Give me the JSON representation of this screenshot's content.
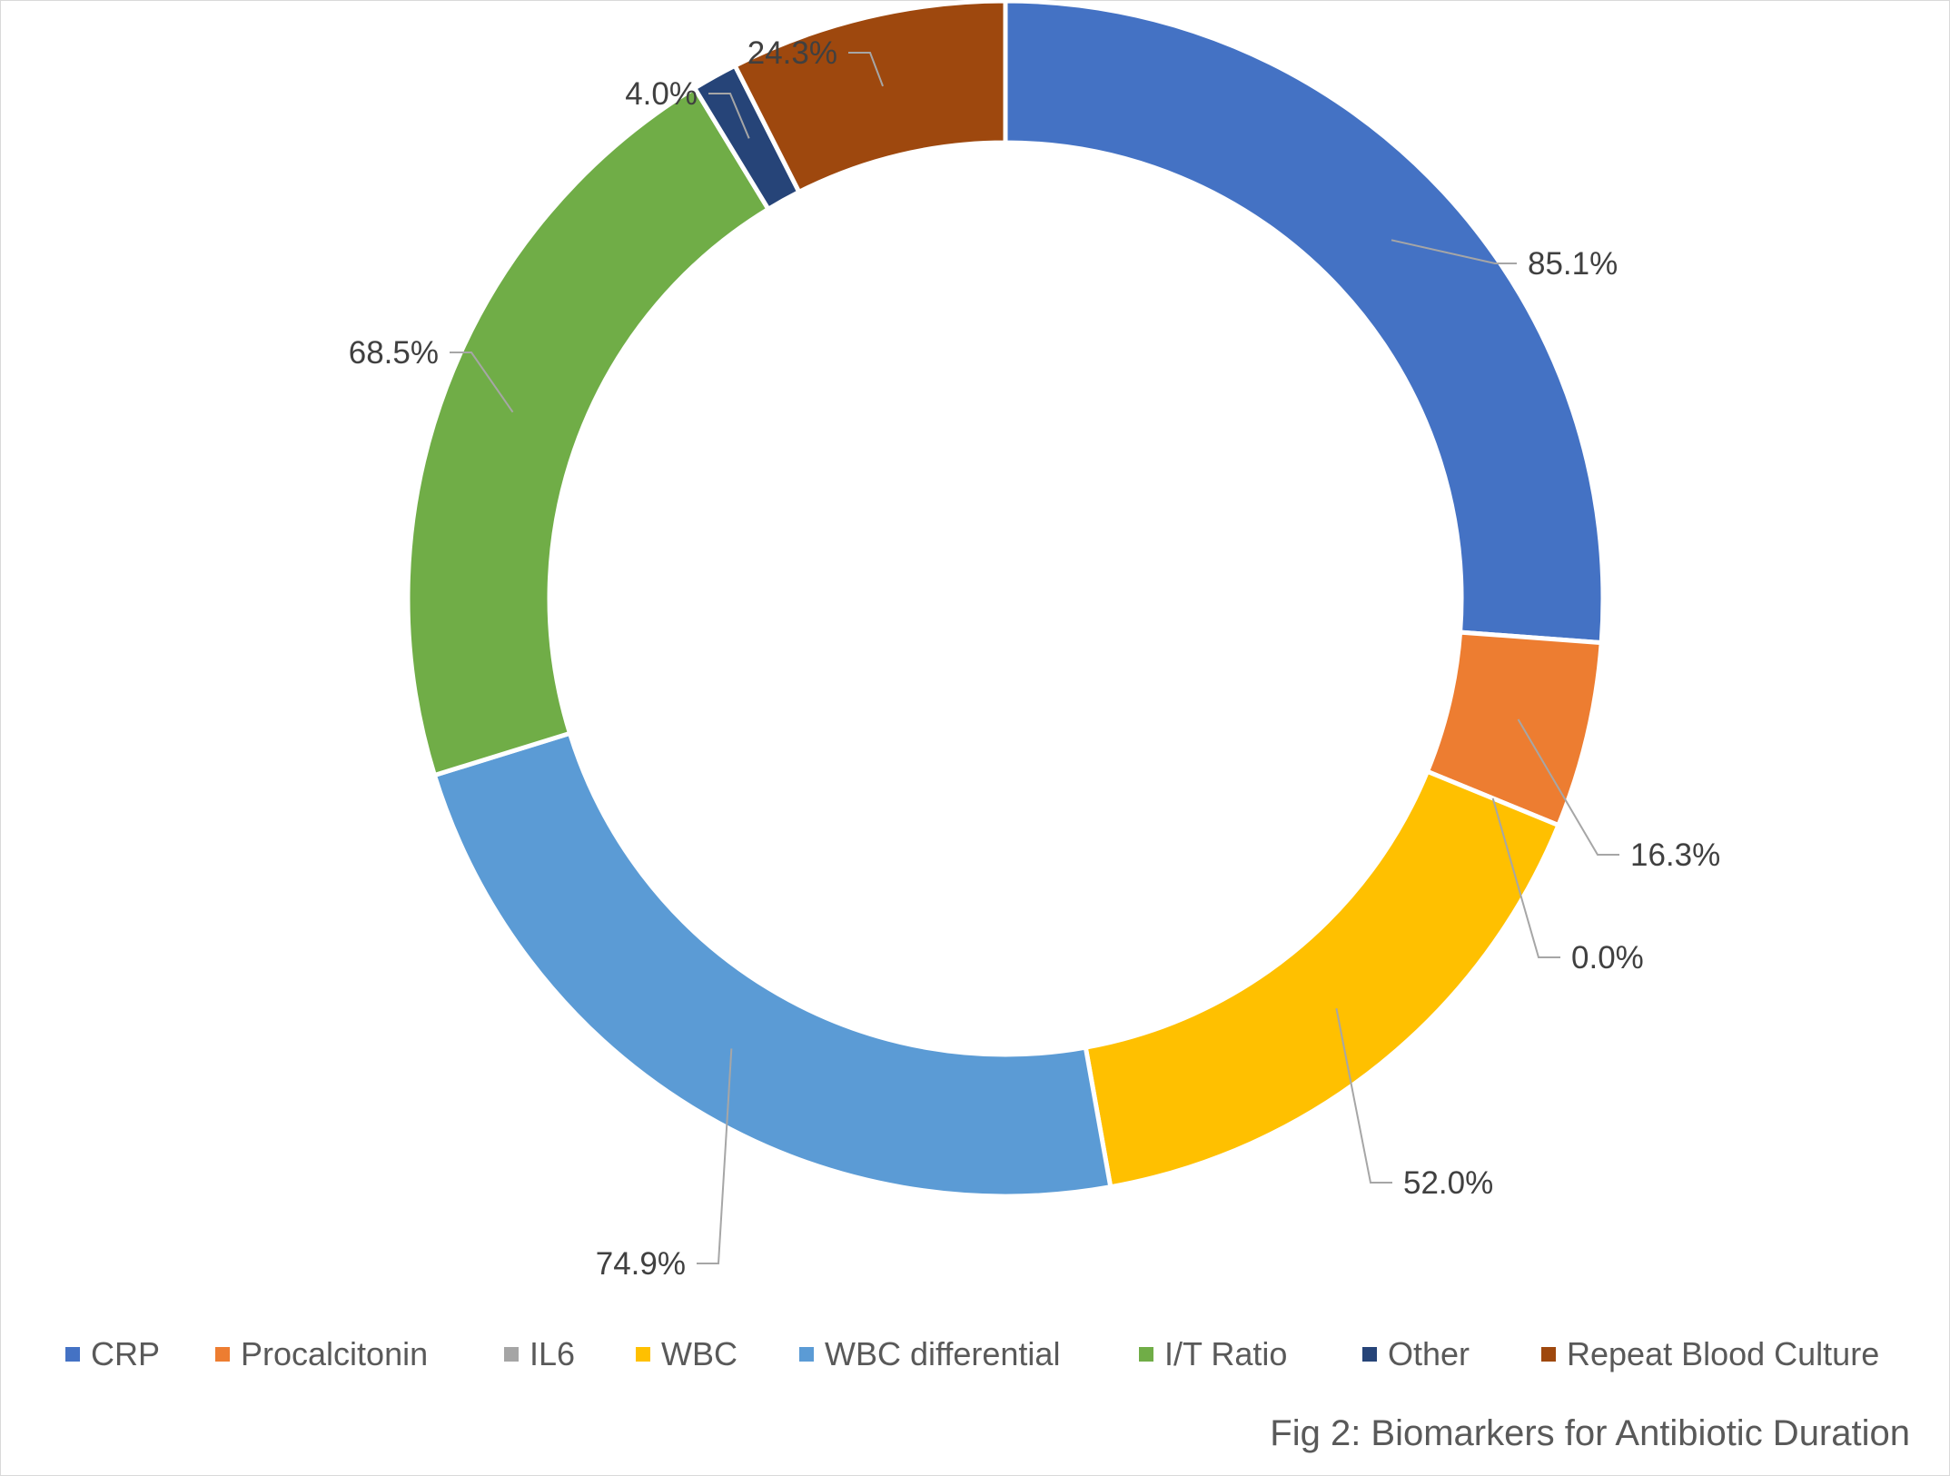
{
  "chart_data": {
    "type": "pie",
    "variant": "doughnut",
    "title": "",
    "caption": "Fig 2: Biomarkers for Antibiotic Duration",
    "legend_position": "bottom",
    "categories": [
      "CRP",
      "Procalcitonin",
      "IL6",
      "WBC",
      "WBC differential",
      "I/T Ratio",
      "Other",
      "Repeat Blood Culture"
    ],
    "values": [
      85.1,
      16.3,
      0.0,
      52.0,
      74.9,
      68.5,
      4.0,
      24.3
    ],
    "data_labels": [
      "85.1%",
      "16.3%",
      "0.0%",
      "52.0%",
      "74.9%",
      "68.5%",
      "4.0%",
      "24.3%"
    ],
    "colors": [
      "#4472C4",
      "#ED7D31",
      "#A5A5A5",
      "#FFC000",
      "#5B9BD5",
      "#70AD47",
      "#264478",
      "#9E480E"
    ]
  }
}
